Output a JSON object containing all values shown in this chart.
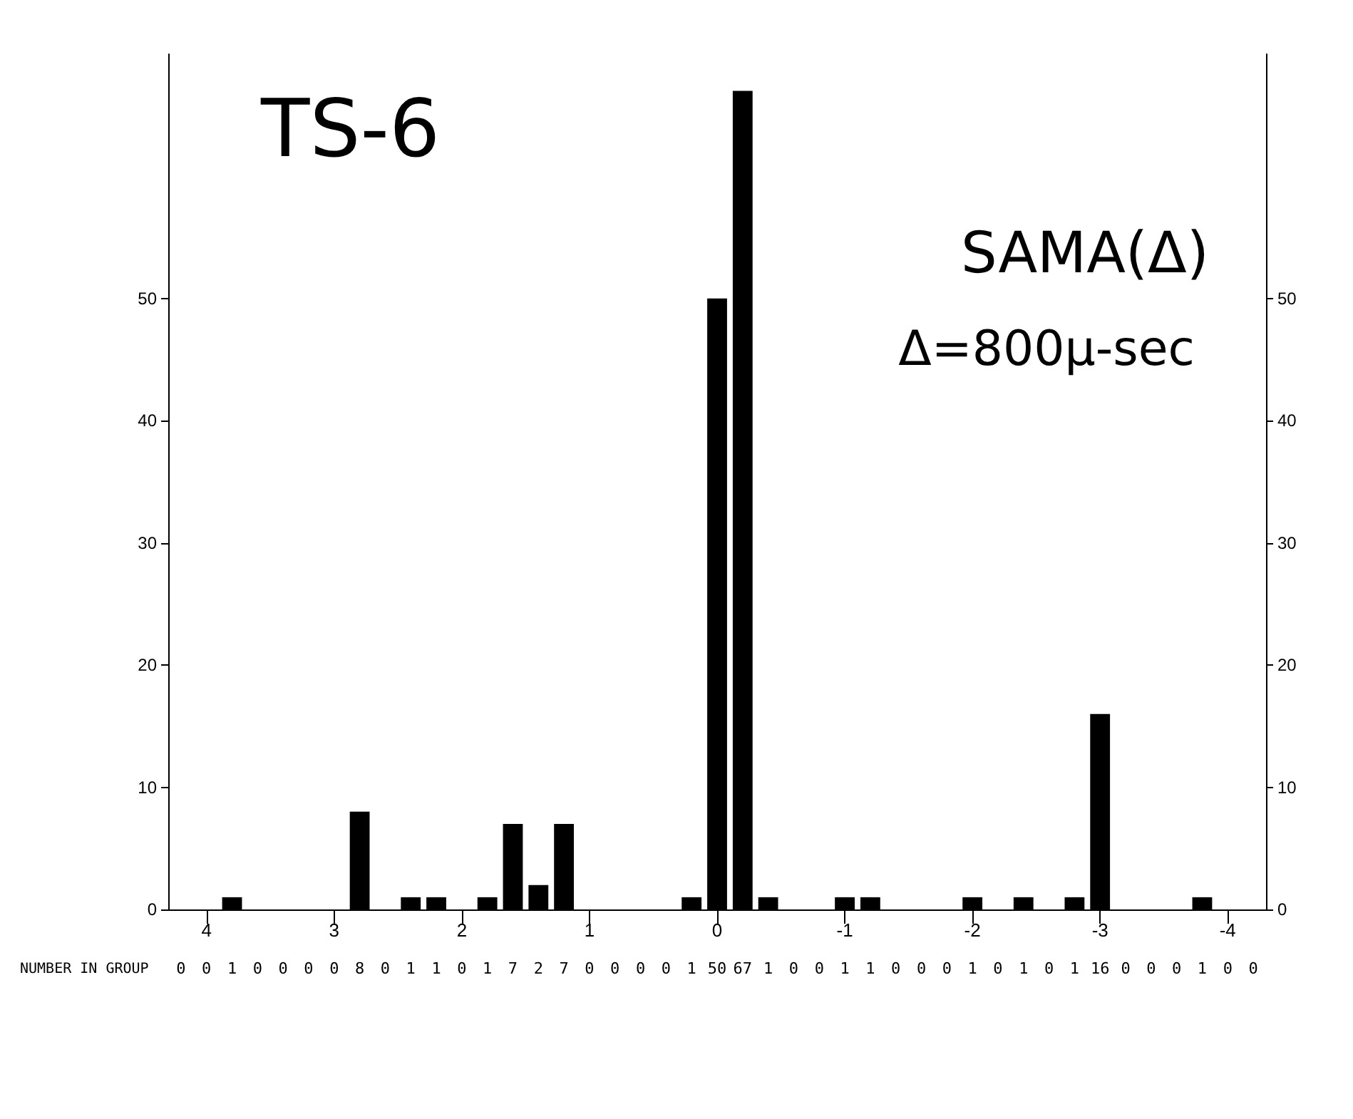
{
  "chart_data": {
    "type": "histogram",
    "title": "TS-6",
    "annotations": [
      "SAMA(Δ)",
      "Δ=800μ-sec",
      "NUMBER IN GROUP"
    ],
    "bins": [
      -4.3,
      -4.1,
      -3.9,
      -3.7,
      -3.5,
      -3.3,
      -3.1,
      -2.9,
      -2.7,
      -2.5,
      -2.3,
      -2.1,
      -1.9,
      -1.7,
      -1.5,
      -1.3,
      -1.1,
      -0.9,
      -0.7,
      -0.5,
      -0.3,
      -0.1,
      0.1,
      0.3,
      0.5,
      0.7,
      0.9,
      1.1,
      1.3,
      1.5,
      1.7,
      1.9,
      2.1,
      2.3,
      2.5,
      2.7,
      2.9,
      3.1,
      3.3,
      3.5,
      3.7,
      3.9,
      4.1,
      4.3
    ],
    "values": [
      0,
      0,
      1,
      0,
      0,
      0,
      16,
      1,
      0,
      1,
      0,
      1,
      0,
      0,
      0,
      1,
      1,
      0,
      0,
      1,
      67,
      50,
      1,
      0,
      0,
      0,
      0,
      7,
      2,
      7,
      1,
      0,
      1,
      1,
      0,
      8,
      0,
      0,
      0,
      0,
      1,
      0,
      0
    ],
    "color": "#000000",
    "xlim": [
      4.3,
      -4.3
    ],
    "xticks": [
      4,
      3,
      2,
      1,
      0,
      -1,
      -2,
      -3,
      -4
    ],
    "ylim": [
      0,
      70
    ],
    "yticks": [
      0,
      10,
      20,
      30,
      40,
      50
    ],
    "y2lim": [
      0,
      70
    ],
    "y2ticks": [
      0,
      10,
      20,
      30,
      40,
      50
    ],
    "data_labels": true,
    "grid": false
  }
}
